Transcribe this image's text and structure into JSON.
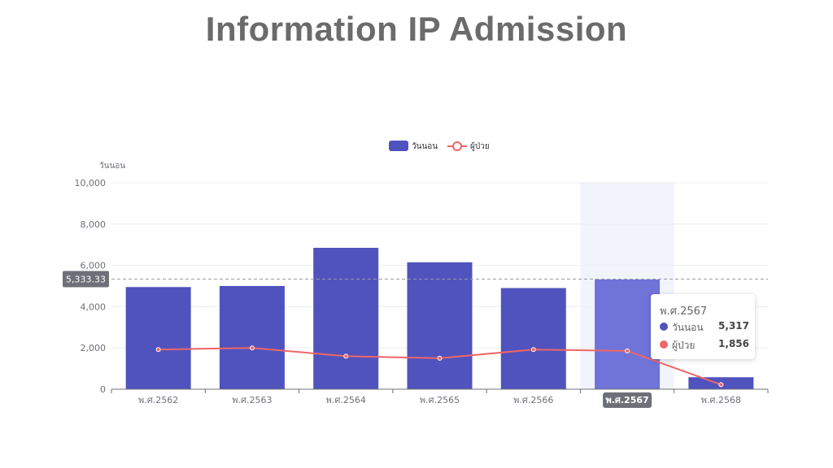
{
  "page": {
    "title": "Information IP Admission"
  },
  "chart_data": {
    "type": "bar",
    "categories": [
      "พ.ศ.2562",
      "พ.ศ.2563",
      "พ.ศ.2564",
      "พ.ศ.2565",
      "พ.ศ.2566",
      "พ.ศ.2567",
      "พ.ศ.2568"
    ],
    "series": [
      {
        "name": "วันนอน",
        "type": "bar",
        "color": "#5053bd",
        "values": [
          4950,
          5000,
          6850,
          6150,
          4900,
          5317,
          580
        ]
      },
      {
        "name": "ผู้ป่วย",
        "type": "line",
        "color": "#ef6666",
        "values": [
          1920,
          2000,
          1600,
          1500,
          1920,
          1856,
          220
        ]
      }
    ],
    "ylabel": "วันนอน",
    "ylim": [
      0,
      10000
    ],
    "yticks": [
      "0",
      "2,000",
      "4,000",
      "6,000",
      "8,000",
      "10,000"
    ],
    "average_line": {
      "value": 5333.33,
      "label": "5,333.33"
    },
    "highlighted_category": "พ.ศ.2567",
    "highlight_bar_color": "#7073d8",
    "legend_position": "top-center",
    "grid": true
  },
  "tooltip": {
    "title": "พ.ศ.2567",
    "rows": [
      {
        "name": "วันนอน",
        "value": "5,317",
        "color": "#5053bd"
      },
      {
        "name": "ผู้ป่วย",
        "value": "1,856",
        "color": "#ef6666"
      }
    ]
  }
}
